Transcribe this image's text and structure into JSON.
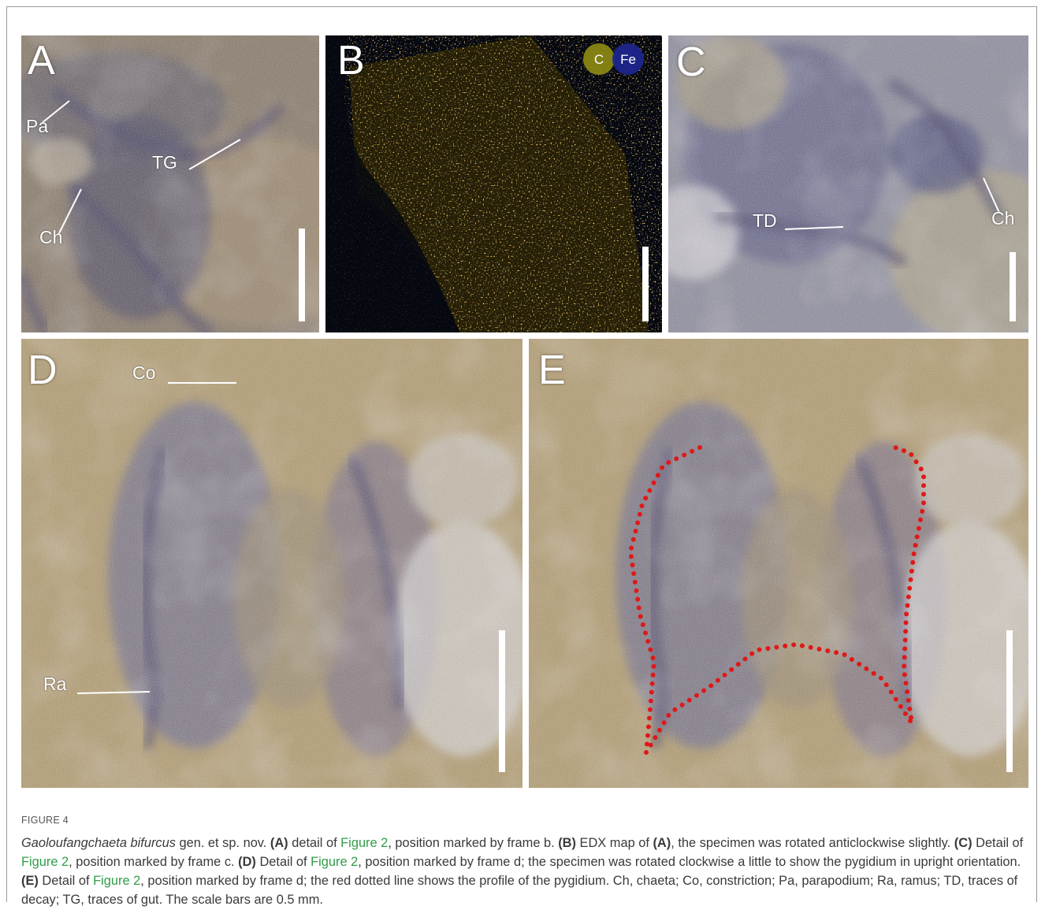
{
  "figure_label": "FIGURE 4",
  "panels": [
    {
      "letter": "A",
      "annotations": [
        "Pa",
        "TG",
        "Ch"
      ]
    },
    {
      "letter": "B",
      "legend": [
        "C",
        "Fe"
      ]
    },
    {
      "letter": "C",
      "annotations": [
        "TD",
        "Ch"
      ]
    },
    {
      "letter": "D",
      "annotations": [
        "Co",
        "Ra"
      ]
    },
    {
      "letter": "E"
    }
  ],
  "caption": [
    {
      "text": "Gaoloufangchaeta bifurcus",
      "style": "italic"
    },
    {
      "text": " gen. et sp. nov. ",
      "style": "plain"
    },
    {
      "text": "(A)",
      "style": "bold"
    },
    {
      "text": " detail of ",
      "style": "plain"
    },
    {
      "text": "Figure 2",
      "style": "link"
    },
    {
      "text": ", position marked by frame b. ",
      "style": "plain"
    },
    {
      "text": "(B)",
      "style": "bold"
    },
    {
      "text": " EDX map of ",
      "style": "plain"
    },
    {
      "text": "(A)",
      "style": "bold"
    },
    {
      "text": ", the specimen was rotated anticlockwise slightly. ",
      "style": "plain"
    },
    {
      "text": "(C)",
      "style": "bold"
    },
    {
      "text": " Detail of ",
      "style": "plain"
    },
    {
      "text": "Figure 2",
      "style": "link"
    },
    {
      "text": ", position marked by frame c. ",
      "style": "plain"
    },
    {
      "text": "(D)",
      "style": "bold"
    },
    {
      "text": " Detail of ",
      "style": "plain"
    },
    {
      "text": "Figure 2",
      "style": "link"
    },
    {
      "text": ", position marked by frame d; the specimen was rotated clockwise a little to show the pygidium in upright orientation. ",
      "style": "plain"
    },
    {
      "text": "(E)",
      "style": "bold"
    },
    {
      "text": " Detail of ",
      "style": "plain"
    },
    {
      "text": "Figure 2",
      "style": "link"
    },
    {
      "text": ", position marked by frame d; the red dotted line shows the profile of the pygidium. Ch, chaeta; Co, constriction; Pa, parapodium; Ra, ramus; TD, traces of decay; TG, traces of gut. The scale bars are 0.5 mm.",
      "style": "plain"
    }
  ]
}
